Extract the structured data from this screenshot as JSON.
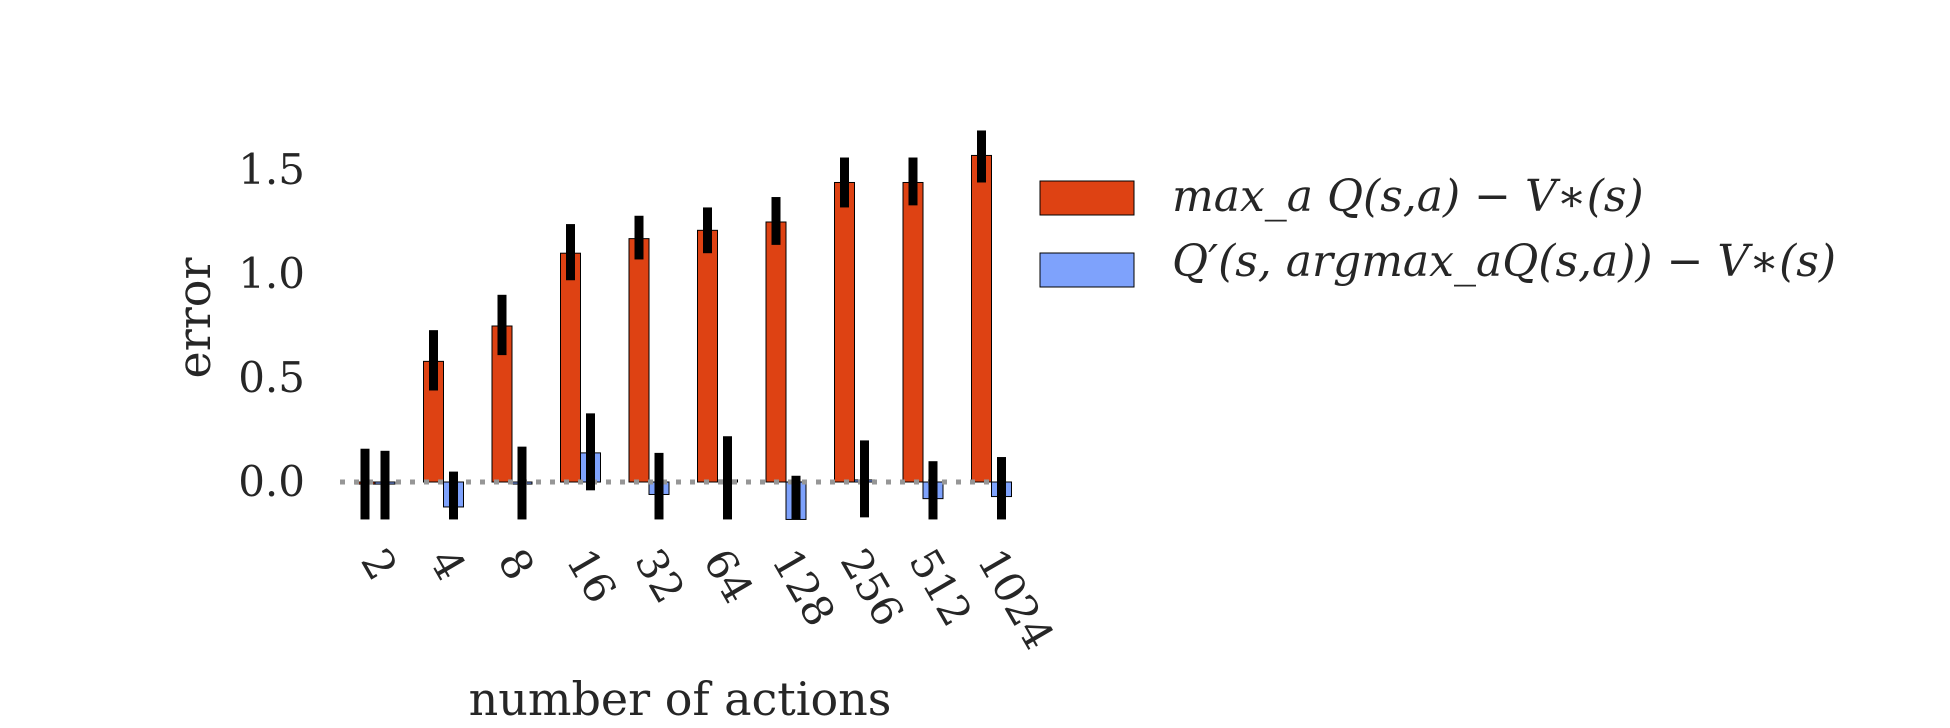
{
  "chart_data": {
    "type": "bar",
    "categories": [
      "2",
      "4",
      "8",
      "16",
      "32",
      "64",
      "128",
      "256",
      "512",
      "1024"
    ],
    "series": [
      {
        "name": "max_a Q(s,a) − V∗(s)",
        "color": "#DE4213",
        "values": [
          -0.01,
          0.58,
          0.75,
          1.1,
          1.17,
          1.21,
          1.25,
          1.44,
          1.44,
          1.57
        ],
        "err_low": [
          -0.18,
          0.44,
          0.61,
          0.97,
          1.07,
          1.1,
          1.14,
          1.32,
          1.33,
          1.44
        ],
        "err_high": [
          0.16,
          0.73,
          0.9,
          1.24,
          1.28,
          1.32,
          1.37,
          1.56,
          1.56,
          1.69
        ]
      },
      {
        "name": "Q′(s, argmax_aQ(s,a)) − V∗(s)",
        "color": "#7EA2FC",
        "values": [
          -0.01,
          -0.12,
          -0.01,
          0.14,
          -0.06,
          0.01,
          -0.18,
          0.01,
          -0.08,
          -0.07
        ],
        "err_low": [
          -0.18,
          -0.18,
          -0.18,
          -0.04,
          -0.18,
          -0.18,
          -0.18,
          -0.17,
          -0.18,
          -0.18
        ],
        "err_high": [
          0.15,
          0.05,
          0.17,
          0.33,
          0.14,
          0.22,
          0.03,
          0.2,
          0.1,
          0.12
        ]
      }
    ],
    "yticks": [
      "0.0",
      "0.5",
      "1.0",
      "1.5"
    ],
    "ylim": [
      -0.18,
      1.72
    ],
    "xlabel": "number of actions",
    "ylabel": "error",
    "baseline": 0.0,
    "grid": false,
    "legend": "right"
  }
}
